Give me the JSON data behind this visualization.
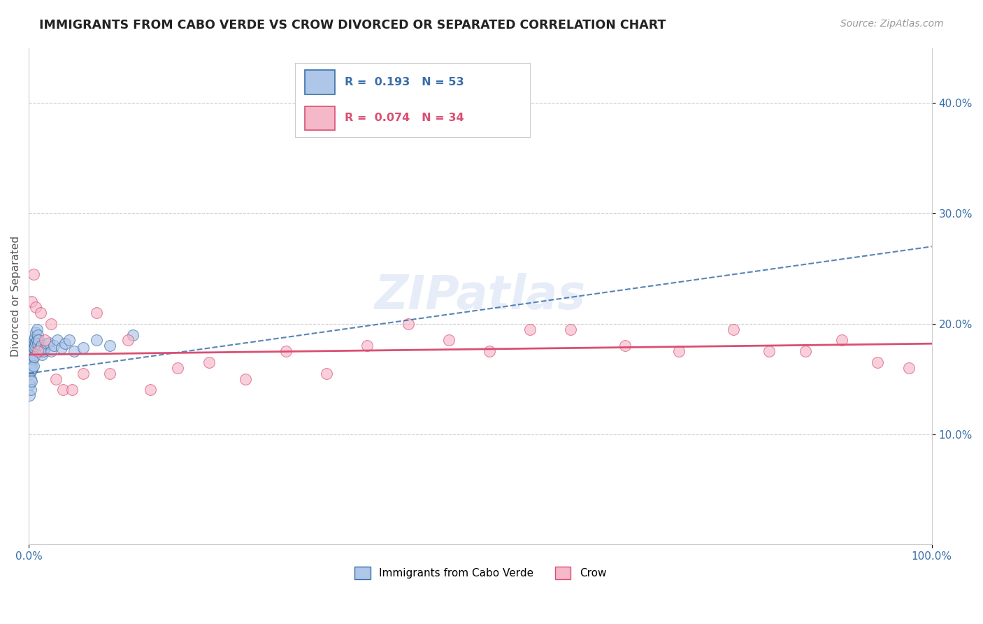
{
  "title": "IMMIGRANTS FROM CABO VERDE VS CROW DIVORCED OR SEPARATED CORRELATION CHART",
  "source": "Source: ZipAtlas.com",
  "ylabel": "Divorced or Separated",
  "xlim": [
    0.0,
    1.0
  ],
  "ylim": [
    0.0,
    0.45
  ],
  "yticks": [
    0.1,
    0.2,
    0.3,
    0.4
  ],
  "ytick_labels": [
    "10.0%",
    "20.0%",
    "30.0%",
    "40.0%"
  ],
  "blue_R": 0.193,
  "blue_N": 53,
  "pink_R": 0.074,
  "pink_N": 34,
  "legend_blue_label": "Immigrants from Cabo Verde",
  "legend_pink_label": "Crow",
  "blue_color": "#aec6e8",
  "pink_color": "#f5b8c8",
  "blue_line_color": "#3a6fa8",
  "pink_line_color": "#d94f72",
  "watermark": "ZIPatlas",
  "blue_points_x": [
    0.001,
    0.001,
    0.001,
    0.001,
    0.002,
    0.002,
    0.002,
    0.002,
    0.002,
    0.003,
    0.003,
    0.003,
    0.003,
    0.003,
    0.004,
    0.004,
    0.004,
    0.004,
    0.005,
    0.005,
    0.005,
    0.005,
    0.006,
    0.006,
    0.006,
    0.007,
    0.007,
    0.008,
    0.008,
    0.009,
    0.009,
    0.01,
    0.01,
    0.011,
    0.012,
    0.013,
    0.014,
    0.015,
    0.016,
    0.018,
    0.02,
    0.022,
    0.025,
    0.028,
    0.032,
    0.036,
    0.04,
    0.045,
    0.05,
    0.06,
    0.075,
    0.09,
    0.115
  ],
  "blue_points_y": [
    0.17,
    0.155,
    0.145,
    0.135,
    0.175,
    0.168,
    0.158,
    0.15,
    0.14,
    0.178,
    0.172,
    0.165,
    0.158,
    0.148,
    0.18,
    0.175,
    0.168,
    0.16,
    0.182,
    0.178,
    0.17,
    0.162,
    0.185,
    0.178,
    0.17,
    0.188,
    0.18,
    0.192,
    0.183,
    0.195,
    0.185,
    0.19,
    0.182,
    0.185,
    0.175,
    0.178,
    0.18,
    0.172,
    0.175,
    0.178,
    0.182,
    0.183,
    0.175,
    0.18,
    0.185,
    0.178,
    0.182,
    0.185,
    0.175,
    0.178,
    0.185,
    0.18,
    0.19
  ],
  "pink_points_x": [
    0.003,
    0.005,
    0.008,
    0.01,
    0.013,
    0.018,
    0.025,
    0.03,
    0.038,
    0.048,
    0.06,
    0.075,
    0.09,
    0.11,
    0.135,
    0.165,
    0.2,
    0.24,
    0.285,
    0.33,
    0.375,
    0.42,
    0.465,
    0.51,
    0.555,
    0.6,
    0.66,
    0.72,
    0.78,
    0.82,
    0.86,
    0.9,
    0.94,
    0.975
  ],
  "pink_points_y": [
    0.22,
    0.245,
    0.215,
    0.175,
    0.21,
    0.185,
    0.2,
    0.15,
    0.14,
    0.14,
    0.155,
    0.21,
    0.155,
    0.185,
    0.14,
    0.16,
    0.165,
    0.15,
    0.175,
    0.155,
    0.18,
    0.2,
    0.185,
    0.175,
    0.195,
    0.195,
    0.18,
    0.175,
    0.195,
    0.175,
    0.175,
    0.185,
    0.165,
    0.16
  ],
  "blue_line_y_at_0": 0.155,
  "blue_line_y_at_1": 0.27,
  "pink_line_y_at_0": 0.172,
  "pink_line_y_at_1": 0.182
}
